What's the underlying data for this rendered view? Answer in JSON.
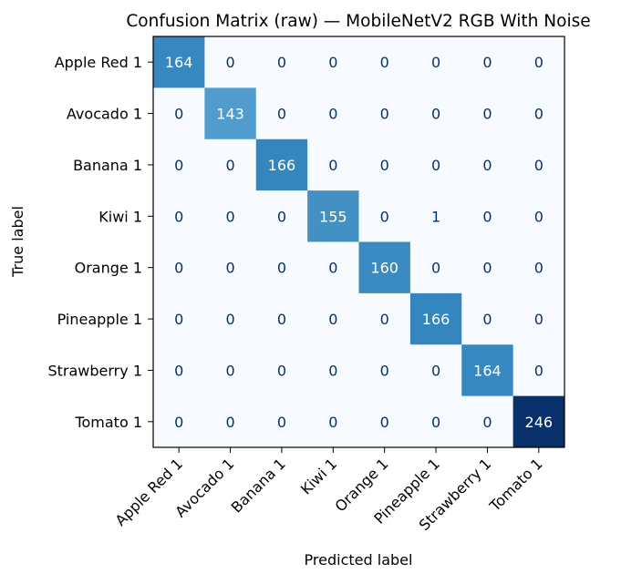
{
  "chart_data": {
    "type": "heatmap",
    "title": "Confusion Matrix (raw) — MobileNetV2 RGB With Noise",
    "xlabel": "Predicted label",
    "ylabel": "True label",
    "x_categories": [
      "Apple Red 1",
      "Avocado 1",
      "Banana 1",
      "Kiwi 1",
      "Orange 1",
      "Pineapple 1",
      "Strawberry 1",
      "Tomato 1"
    ],
    "y_categories": [
      "Apple Red 1",
      "Avocado 1",
      "Banana 1",
      "Kiwi 1",
      "Orange 1",
      "Pineapple 1",
      "Strawberry 1",
      "Tomato 1"
    ],
    "matrix": [
      [
        164,
        0,
        0,
        0,
        0,
        0,
        0,
        0
      ],
      [
        0,
        143,
        0,
        0,
        0,
        0,
        0,
        0
      ],
      [
        0,
        0,
        166,
        0,
        0,
        0,
        0,
        0
      ],
      [
        0,
        0,
        0,
        155,
        0,
        1,
        0,
        0
      ],
      [
        0,
        0,
        0,
        0,
        160,
        0,
        0,
        0
      ],
      [
        0,
        0,
        0,
        0,
        0,
        166,
        0,
        0
      ],
      [
        0,
        0,
        0,
        0,
        0,
        0,
        164,
        0
      ],
      [
        0,
        0,
        0,
        0,
        0,
        0,
        0,
        246
      ]
    ],
    "colormap": "Blues",
    "value_range": [
      0,
      246
    ],
    "colorbar": false,
    "grid": false
  },
  "colors": {
    "low": "#f7fbff",
    "high": "#08306b",
    "text_dark": "#08306b",
    "text_light": "#ffffff"
  }
}
